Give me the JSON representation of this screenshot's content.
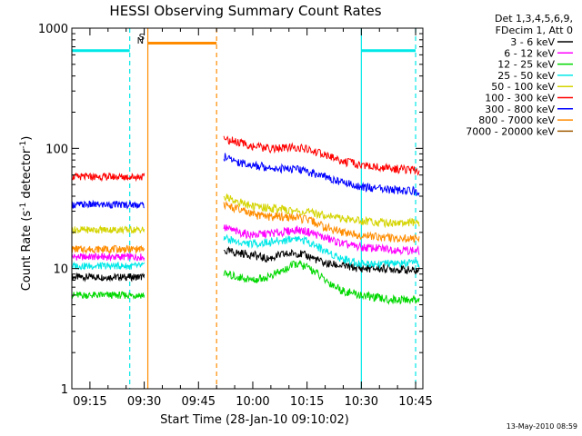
{
  "chart_data": {
    "type": "line",
    "title": "HESSI Observing Summary Count Rates",
    "xlabel": "Start Time (28-Jan-10 09:10:02)",
    "ylabel_parts": [
      "Count Rate (s",
      "-1",
      " detector",
      "-1",
      ")"
    ],
    "y_scale": "log",
    "ylim": [
      1,
      1000
    ],
    "xlim": [
      "09:10",
      "10:47"
    ],
    "y_ticks": [
      1,
      10,
      100,
      1000
    ],
    "y_tick_labels": [
      "1",
      "10",
      "100",
      "1000"
    ],
    "x_ticks": [
      "09:15",
      "09:30",
      "09:45",
      "10:00",
      "10:15",
      "10:30",
      "10:45"
    ],
    "legend_header": [
      "Det 1,3,4,5,6,9,",
      "FDecim 1, Att 0"
    ],
    "legend_placement": "right, outside plot",
    "stamp": "13-May-2010 08:59",
    "annotations": [
      "N",
      "S"
    ],
    "series": [
      {
        "name": "3 - 6 keV",
        "color": "#000000",
        "pre": 8.5,
        "post": [
          14,
          13.5,
          13,
          12,
          13,
          13.5,
          12.5,
          11,
          10.5,
          10,
          10,
          9.5
        ]
      },
      {
        "name": "6 - 12 keV",
        "color": "#ff00ff",
        "pre": 12.5,
        "post": [
          22,
          20,
          19,
          19.5,
          20,
          21,
          20,
          18,
          16,
          15,
          14.5,
          14
        ]
      },
      {
        "name": "12 - 25 keV",
        "color": "#00d800",
        "pre": 6,
        "post": [
          9,
          8.5,
          8,
          8.5,
          9.5,
          11,
          10,
          8,
          6.5,
          6,
          5.5,
          5.5
        ]
      },
      {
        "name": "25 - 50 keV",
        "color": "#00e8e8",
        "pre": 10.5,
        "post": [
          18,
          16.5,
          16,
          16.5,
          17,
          18,
          16.5,
          14,
          12,
          11,
          11,
          11
        ]
      },
      {
        "name": "50 - 100 keV",
        "color": "#d4d400",
        "pre": 21,
        "post": [
          40,
          36,
          33,
          32,
          31,
          30,
          29,
          28,
          26,
          25,
          24,
          24
        ]
      },
      {
        "name": "100 - 300 keV",
        "color": "#ff0000",
        "pre": 58,
        "post": [
          120,
          112,
          104,
          100,
          100,
          102,
          96,
          88,
          78,
          72,
          68,
          65
        ]
      },
      {
        "name": "300 - 800 keV",
        "color": "#0000ff",
        "pre": 34,
        "post": [
          85,
          77,
          72,
          70,
          68,
          67,
          63,
          58,
          52,
          48,
          45,
          44
        ]
      },
      {
        "name": "800 - 7000 keV",
        "color": "#ff8c00",
        "pre": 14.5,
        "post": [
          34,
          31,
          28,
          27,
          27,
          26.5,
          25,
          22,
          20,
          19,
          18,
          17.5
        ]
      },
      {
        "name": "7000 - 20000 keV",
        "color": "#a05a00",
        "pre": null,
        "post": null
      }
    ],
    "post_times": [
      "09:52",
      "09:56",
      "10:00",
      "10:04",
      "10:08",
      "10:12",
      "10:16",
      "10:20",
      "10:25",
      "10:30",
      "10:38",
      "10:46"
    ],
    "pre_interval": [
      "09:10",
      "09:30"
    ],
    "saa_level": 750,
    "saa_interval": [
      "09:31",
      "09:50"
    ],
    "night_level": 650,
    "night_intervals": [
      [
        "09:10",
        "09:26"
      ],
      [
        "10:30",
        "10:45"
      ]
    ],
    "markers": [
      {
        "time": "09:26",
        "color": "#00e8e8",
        "style": "dashed"
      },
      {
        "time": "09:31",
        "color": "#ff8c00",
        "style": "solid"
      },
      {
        "time": "09:50",
        "color": "#ff8c00",
        "style": "dashed"
      },
      {
        "time": "10:30",
        "color": "#00e8e8",
        "style": "solid"
      },
      {
        "time": "10:45",
        "color": "#00e8e8",
        "style": "dashed"
      }
    ]
  }
}
